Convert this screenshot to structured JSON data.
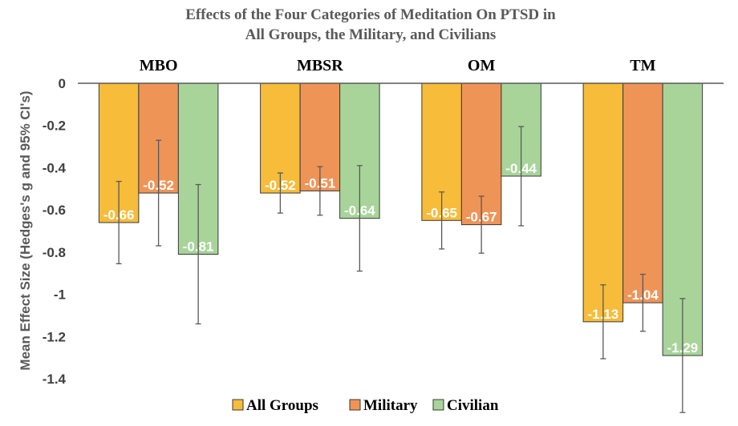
{
  "chart_data": {
    "type": "bar",
    "title_lines": [
      "Effects of the Four Categories of Meditation On PTSD in",
      "All Groups, the Military, and Civilians"
    ],
    "categories": [
      "MBO",
      "MBSR",
      "OM",
      "TM"
    ],
    "ylabel": "Mean Effect Size (Hedges's g and 95% CI's)",
    "ylim": [
      -1.4,
      0
    ],
    "yticks": [
      0,
      -0.2,
      -0.4,
      -0.6,
      -0.8,
      -1,
      -1.2,
      -1.4
    ],
    "ytick_labels": [
      "0",
      "-0.2",
      "-0.4",
      "-0.6",
      "-0.8",
      "-1",
      "-1.2",
      "-1.4"
    ],
    "grid": false,
    "legend_position": "bottom",
    "series": [
      {
        "name": "All Groups",
        "color": "#F6BC3A",
        "values": [
          -0.66,
          -0.52,
          -0.65,
          -1.13
        ],
        "value_labels": [
          "-0.66",
          "-0.52",
          "-0.65",
          "-1.13"
        ],
        "ci_low": [
          -0.855,
          -0.615,
          -0.785,
          -1.305
        ],
        "ci_high": [
          -0.465,
          -0.425,
          -0.515,
          -0.955
        ]
      },
      {
        "name": "Military",
        "color": "#EF9457",
        "values": [
          -0.52,
          -0.51,
          -0.67,
          -1.04
        ],
        "value_labels": [
          "-0.52",
          "-0.51",
          "-0.67",
          "-1.04"
        ],
        "ci_low": [
          -0.77,
          -0.625,
          -0.805,
          -1.175
        ],
        "ci_high": [
          -0.27,
          -0.395,
          -0.535,
          -0.905
        ]
      },
      {
        "name": "Civilian",
        "color": "#A8D49A",
        "values": [
          -0.81,
          -0.64,
          -0.44,
          -1.29
        ],
        "value_labels": [
          "-0.81",
          "-0.64",
          "-0.44",
          "-1.29"
        ],
        "ci_low": [
          -1.14,
          -0.89,
          -0.675,
          -1.56
        ],
        "ci_high": [
          -0.48,
          -0.39,
          -0.205,
          -1.02
        ]
      }
    ]
  }
}
